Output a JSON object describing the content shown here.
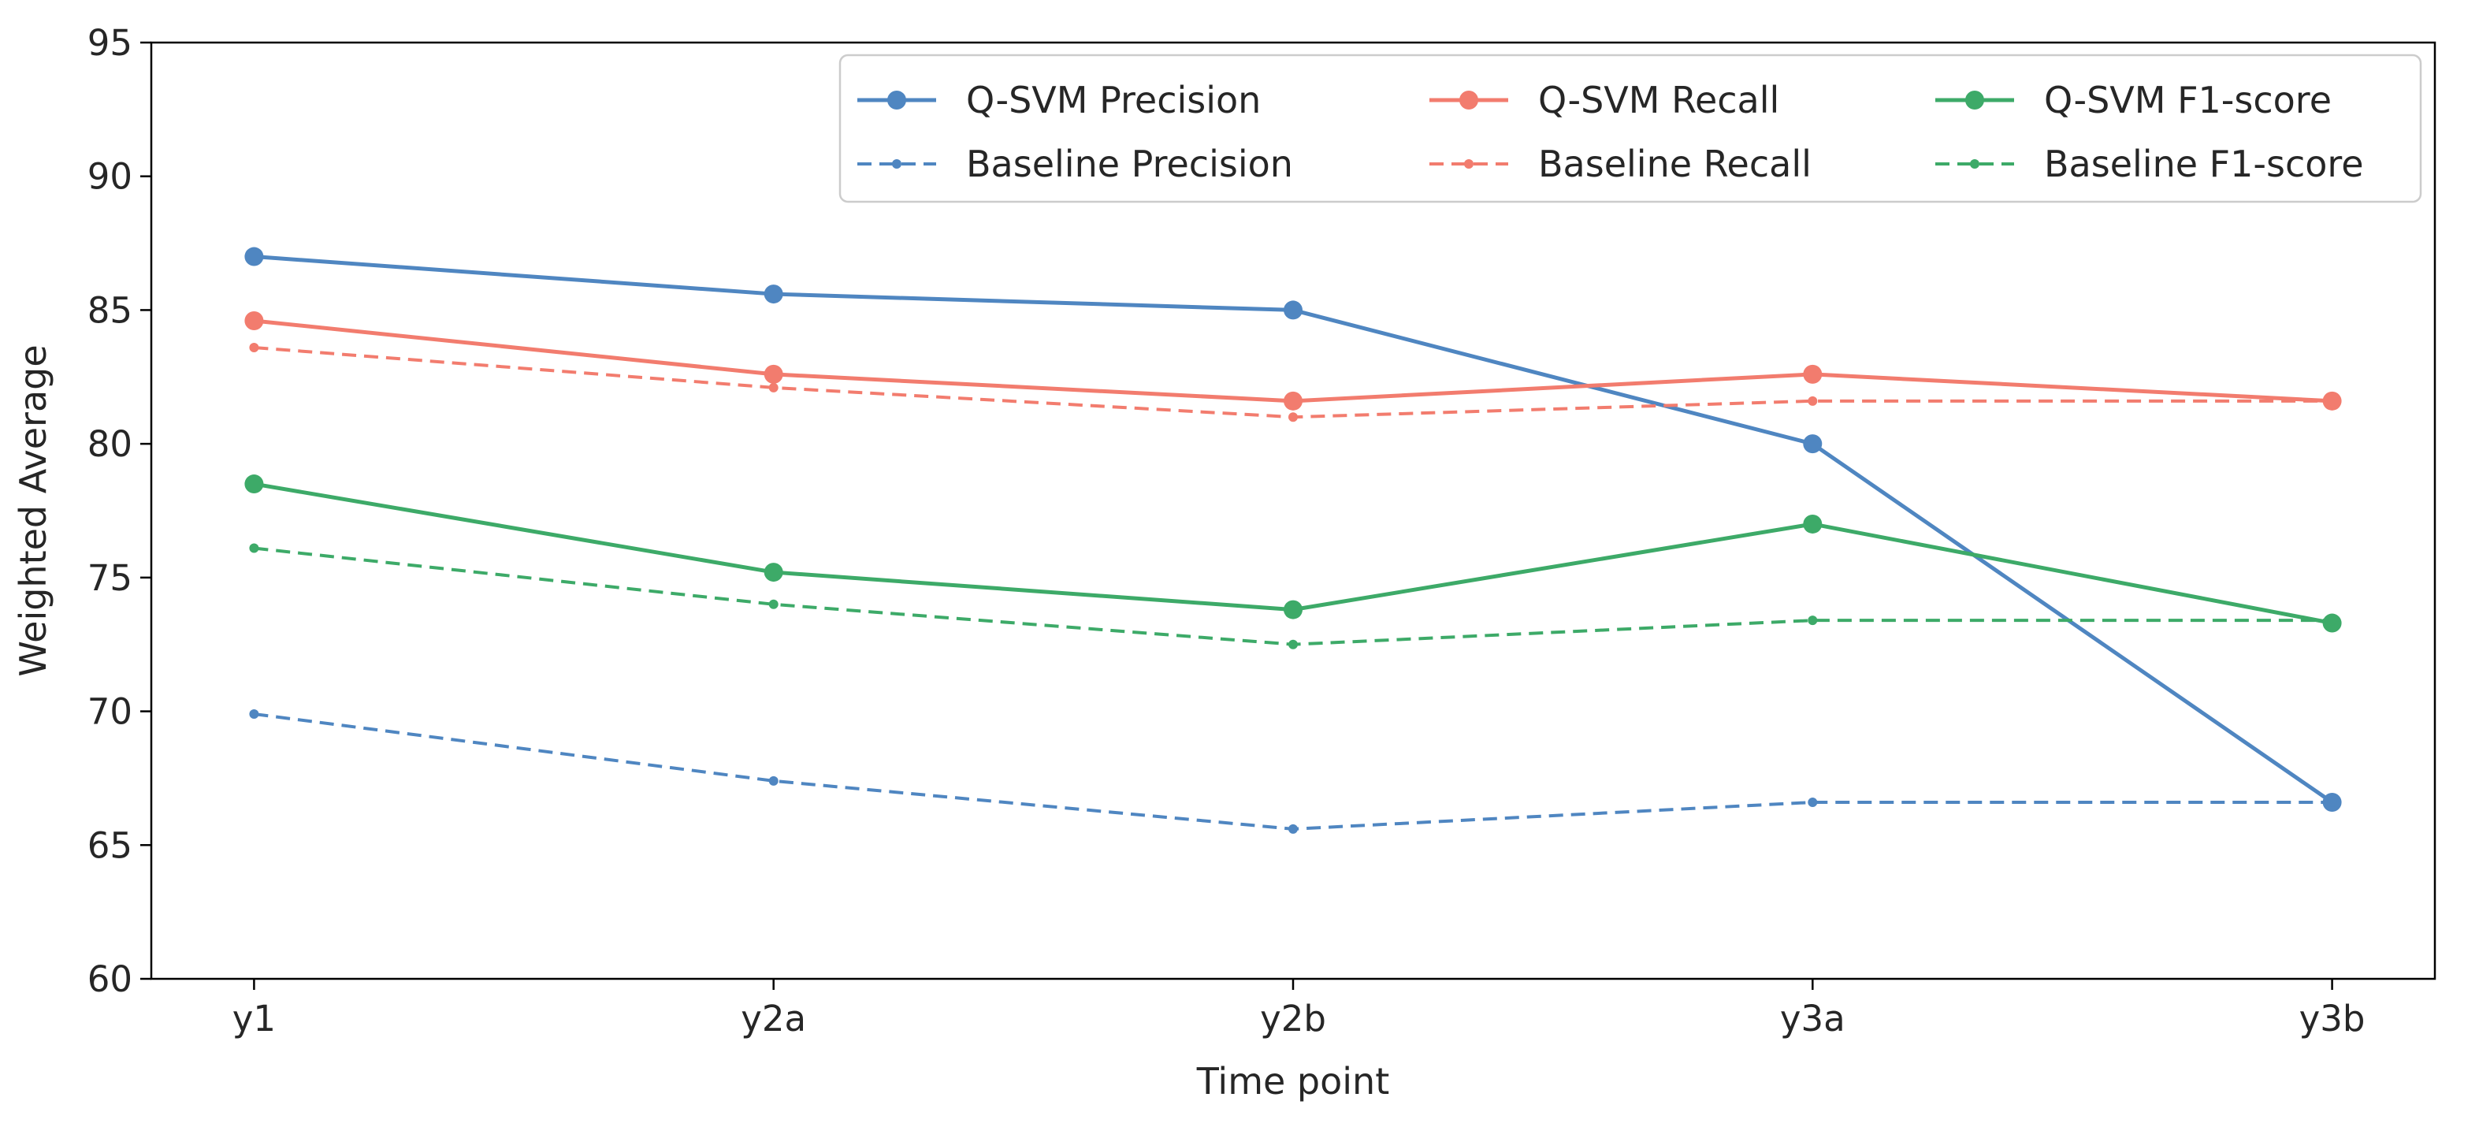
{
  "chart_data": {
    "type": "line",
    "title": "",
    "xlabel": "Time point",
    "ylabel": "Weighted Average",
    "categories": [
      "y1",
      "y2a",
      "y2b",
      "y3a",
      "y3b"
    ],
    "ylim": [
      60,
      95
    ],
    "yticks": [
      60,
      65,
      70,
      75,
      80,
      85,
      90,
      95
    ],
    "grid": false,
    "legend_position": "top-right",
    "legend_columns": 3,
    "series": [
      {
        "name": "Q-SVM Precision",
        "values": [
          87.0,
          85.6,
          85.0,
          80.0,
          66.6
        ],
        "color": "#4f86c1",
        "style": "solid",
        "marker": "circle"
      },
      {
        "name": "Baseline Precision",
        "values": [
          69.9,
          67.4,
          65.6,
          66.6,
          66.6
        ],
        "color": "#4f86c1",
        "style": "dashed",
        "marker": "dot"
      },
      {
        "name": "Q-SVM Recall",
        "values": [
          84.6,
          82.6,
          81.6,
          82.6,
          81.6
        ],
        "color": "#f27c6e",
        "style": "solid",
        "marker": "circle"
      },
      {
        "name": "Baseline Recall",
        "values": [
          83.6,
          82.1,
          81.0,
          81.6,
          81.6
        ],
        "color": "#f27c6e",
        "style": "dashed",
        "marker": "dot"
      },
      {
        "name": "Q-SVM F1-score",
        "values": [
          78.5,
          75.2,
          73.8,
          77.0,
          73.3
        ],
        "color": "#3daa68",
        "style": "solid",
        "marker": "circle"
      },
      {
        "name": "Baseline F1-score",
        "values": [
          76.1,
          74.0,
          72.5,
          73.4,
          73.4
        ],
        "color": "#3daa68",
        "style": "dashed",
        "marker": "dot"
      }
    ]
  }
}
